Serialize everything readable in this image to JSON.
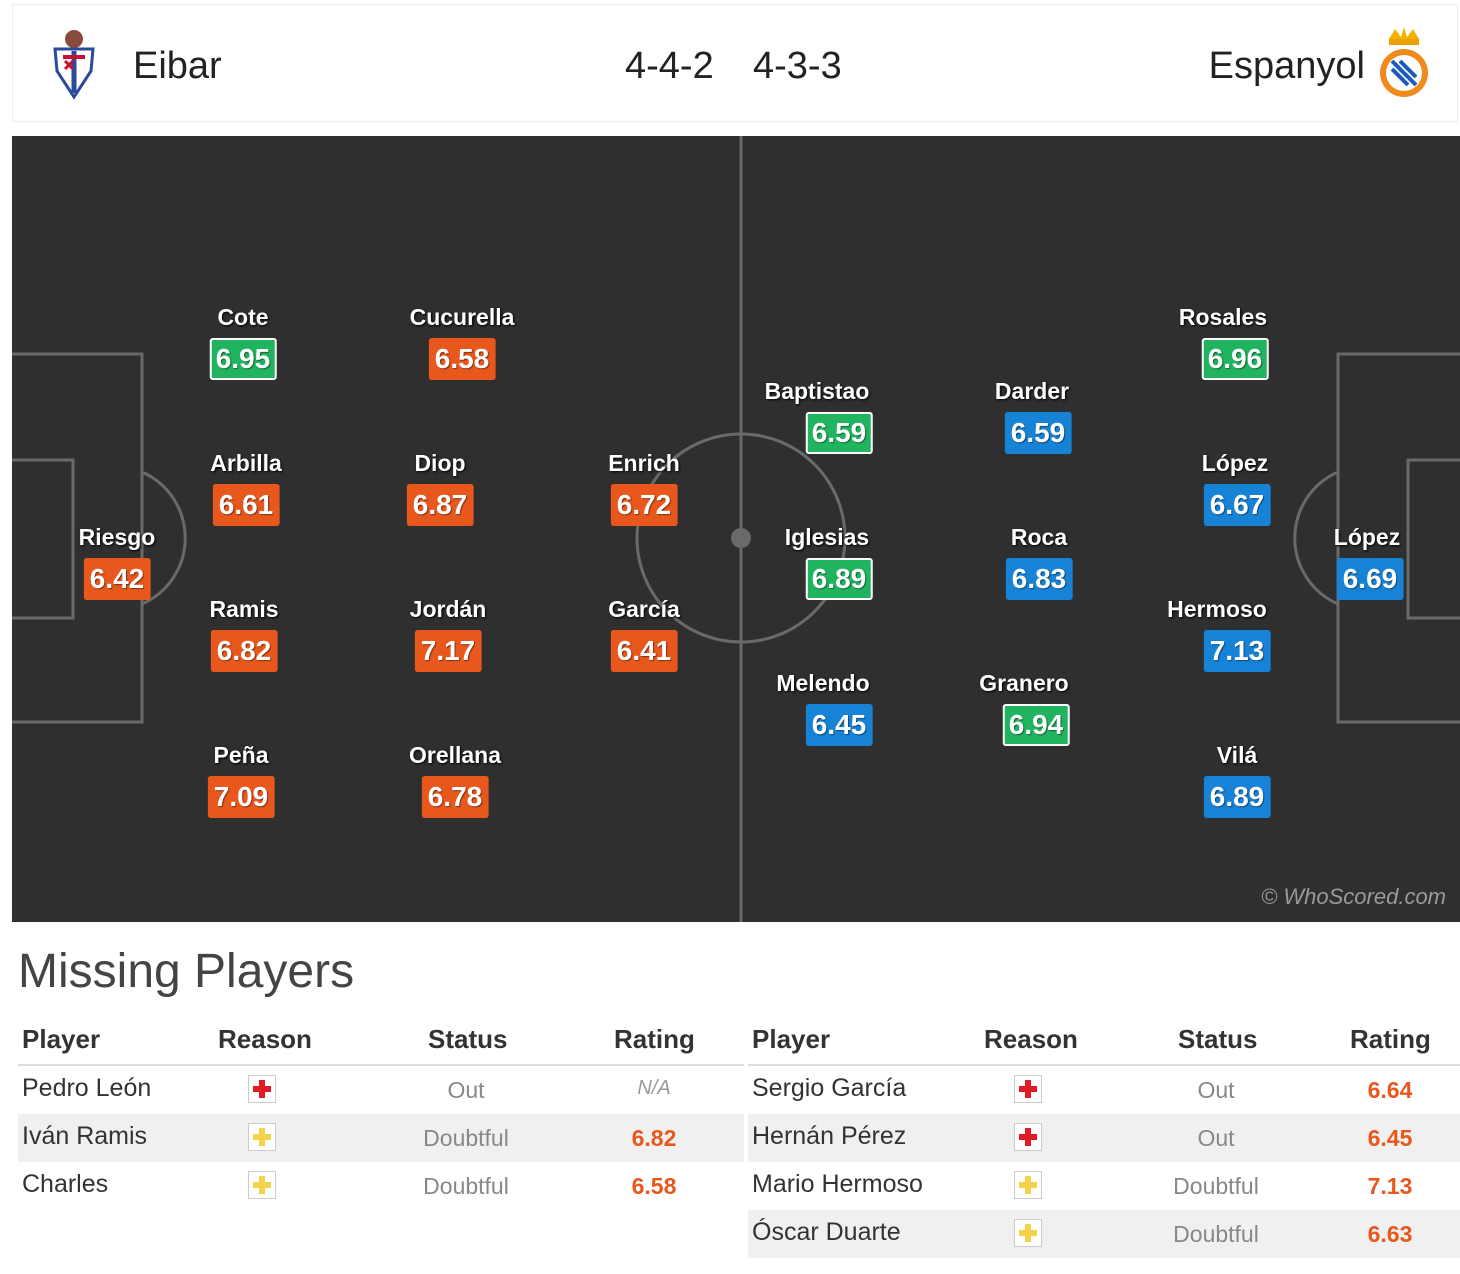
{
  "header": {
    "home_team": "Eibar",
    "away_team": "Espanyol",
    "home_formation": "4-4-2",
    "away_formation": "4-3-3"
  },
  "colors": {
    "pitch": "#2f2f2f",
    "rating_orange": "#e8581d",
    "rating_blue": "#1683d6",
    "rating_green": "#20b45f"
  },
  "home_players": [
    {
      "name": "Riesgo",
      "rating": "6.42",
      "style": "orange"
    },
    {
      "name": "Cote",
      "rating": "6.95",
      "style": "green"
    },
    {
      "name": "Arbilla",
      "rating": "6.61",
      "style": "orange"
    },
    {
      "name": "Ramis",
      "rating": "6.82",
      "style": "orange"
    },
    {
      "name": "Peña",
      "rating": "7.09",
      "style": "orange"
    },
    {
      "name": "Cucurella",
      "rating": "6.58",
      "style": "orange"
    },
    {
      "name": "Diop",
      "rating": "6.87",
      "style": "orange"
    },
    {
      "name": "Jordán",
      "rating": "7.17",
      "style": "orange"
    },
    {
      "name": "Orellana",
      "rating": "6.78",
      "style": "orange"
    },
    {
      "name": "Enrich",
      "rating": "6.72",
      "style": "orange"
    },
    {
      "name": "García",
      "rating": "6.41",
      "style": "orange"
    }
  ],
  "away_players": [
    {
      "name": "Baptistao",
      "rating": "6.59",
      "style": "green"
    },
    {
      "name": "Iglesias",
      "rating": "6.89",
      "style": "green"
    },
    {
      "name": "Melendo",
      "rating": "6.45",
      "style": "blue"
    },
    {
      "name": "Darder",
      "rating": "6.59",
      "style": "blue"
    },
    {
      "name": "Roca",
      "rating": "6.83",
      "style": "blue"
    },
    {
      "name": "Granero",
      "rating": "6.94",
      "style": "green"
    },
    {
      "name": "Rosales",
      "rating": "6.96",
      "style": "green"
    },
    {
      "name": "López",
      "rating": "6.67",
      "style": "blue"
    },
    {
      "name": "Hermoso",
      "rating": "7.13",
      "style": "blue"
    },
    {
      "name": "Vilá",
      "rating": "6.89",
      "style": "blue"
    },
    {
      "name": "López",
      "rating": "6.69",
      "style": "blue"
    }
  ],
  "watermark": "© WhoScored.com",
  "missing": {
    "title": "Missing Players",
    "columns": {
      "player": "Player",
      "reason": "Reason",
      "status": "Status",
      "rating": "Rating"
    },
    "home": [
      {
        "player": "Pedro León",
        "reason": "injury",
        "status": "Out",
        "rating": "N/A"
      },
      {
        "player": "Iván Ramis",
        "reason": "doubtful",
        "status": "Doubtful",
        "rating": "6.82"
      },
      {
        "player": "Charles",
        "reason": "doubtful",
        "status": "Doubtful",
        "rating": "6.58"
      }
    ],
    "away": [
      {
        "player": "Sergio García",
        "reason": "injury",
        "status": "Out",
        "rating": "6.64"
      },
      {
        "player": "Hernán Pérez",
        "reason": "injury",
        "status": "Out",
        "rating": "6.45"
      },
      {
        "player": "Mario Hermoso",
        "reason": "doubtful",
        "status": "Doubtful",
        "rating": "7.13"
      },
      {
        "player": "Óscar Duarte",
        "reason": "doubtful",
        "status": "Doubtful",
        "rating": "6.63"
      }
    ]
  }
}
